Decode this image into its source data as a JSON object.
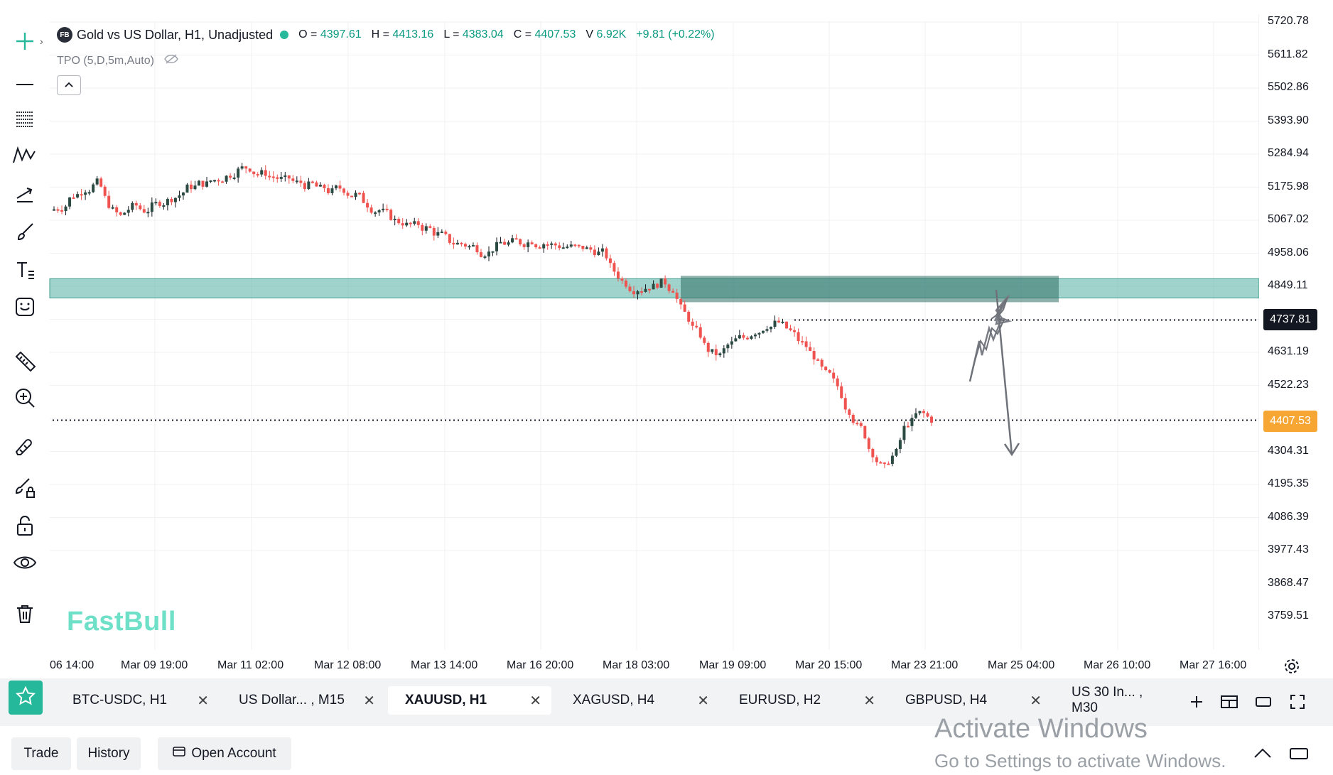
{
  "symbol": {
    "badge": "FB",
    "title": "Gold vs US Dollar, H1, Unadjusted"
  },
  "ohlc": {
    "o_label": "O =",
    "o": "4397.61",
    "h_label": "H =",
    "h": "4413.16",
    "l_label": "L =",
    "l": "4383.04",
    "c_label": "C =",
    "c": "4407.53",
    "v_label": "V",
    "v": "6.92K",
    "change": "+9.81 (+0.22%)"
  },
  "indicator": "TPO (5,D,5m,Auto)",
  "watermark": "FastBull",
  "price_axis": [
    "5720.78",
    "5611.82",
    "5502.86",
    "5393.90",
    "5284.94",
    "5175.98",
    "5067.02",
    "4958.06",
    "4849.11",
    "4631.19",
    "4522.23",
    "4304.31",
    "4195.35",
    "4086.39",
    "3977.43",
    "3868.47",
    "3759.51"
  ],
  "price_tags": {
    "level": "4737.81",
    "current": "4407.53"
  },
  "time_axis": [
    "06 14:00",
    "Mar 09 19:00",
    "Mar 11 02:00",
    "Mar 12 08:00",
    "Mar 13 14:00",
    "Mar 16 20:00",
    "Mar 18 03:00",
    "Mar 19 09:00",
    "Mar 20 15:00",
    "Mar 23 21:00",
    "Mar 25 04:00",
    "Mar 26 10:00",
    "Mar 27 16:00"
  ],
  "colors": {
    "up": "#26a69a",
    "down": "#ef5350",
    "zone": "#5fb5a8",
    "current_tag": "#f7a634",
    "level_tag": "#131722",
    "accent": "#26b89a"
  },
  "tabs": [
    {
      "label": "BTC-USDC, H1",
      "active": false
    },
    {
      "label": "US Dollar... , M15",
      "active": false
    },
    {
      "label": "XAUUSD, H1",
      "active": true
    },
    {
      "label": "XAGUSD, H4",
      "active": false
    },
    {
      "label": "EURUSD, H2",
      "active": false
    },
    {
      "label": "GBPUSD, H4",
      "active": false
    },
    {
      "label": "US 30 In... , M30",
      "active": false
    }
  ],
  "bottom": {
    "trade": "Trade",
    "history": "History",
    "open_account": "Open Account"
  },
  "windows_notice": {
    "title": "Activate Windows",
    "subtitle": "Go to Settings to activate Windows."
  },
  "icons": [
    "crosshair-icon",
    "horizontal-line-icon",
    "fib-lines-icon",
    "pattern-icon",
    "projection-icon",
    "brush-icon",
    "text-icon",
    "emoji-icon",
    "ruler-icon",
    "zoom-in-icon",
    "magnet-icon",
    "lock-brush-icon",
    "lock-icon",
    "eye-icon",
    "trash-icon"
  ],
  "chart_data": {
    "type": "candlestick",
    "series_path_closes": [
      5110,
      5150,
      5170,
      5190,
      5120,
      5080,
      5110,
      5100,
      5120,
      5130,
      5150,
      5180,
      5190,
      5200,
      5210,
      5230,
      5240,
      5220,
      5210,
      5200,
      5190,
      5180,
      5170,
      5160,
      5170,
      5150,
      5120,
      5100,
      5080,
      5060,
      5050,
      5040,
      5020,
      5000,
      4990,
      4980,
      4960,
      4980,
      4990,
      4995,
      5000,
      4990,
      4985,
      4980,
      4975,
      4970,
      4960,
      4900,
      4860,
      4840,
      4850,
      4860,
      4840,
      4760,
      4700,
      4640,
      4620,
      4660,
      4680,
      4700,
      4720,
      4730,
      4700,
      4660,
      4620,
      4560,
      4520,
      4440,
      4380,
      4300,
      4250,
      4300,
      4400,
      4430,
      4410
    ],
    "current_price": 4407.53,
    "resistance_zone": [
      4820,
      4860
    ],
    "level_line": 4737.81
  }
}
